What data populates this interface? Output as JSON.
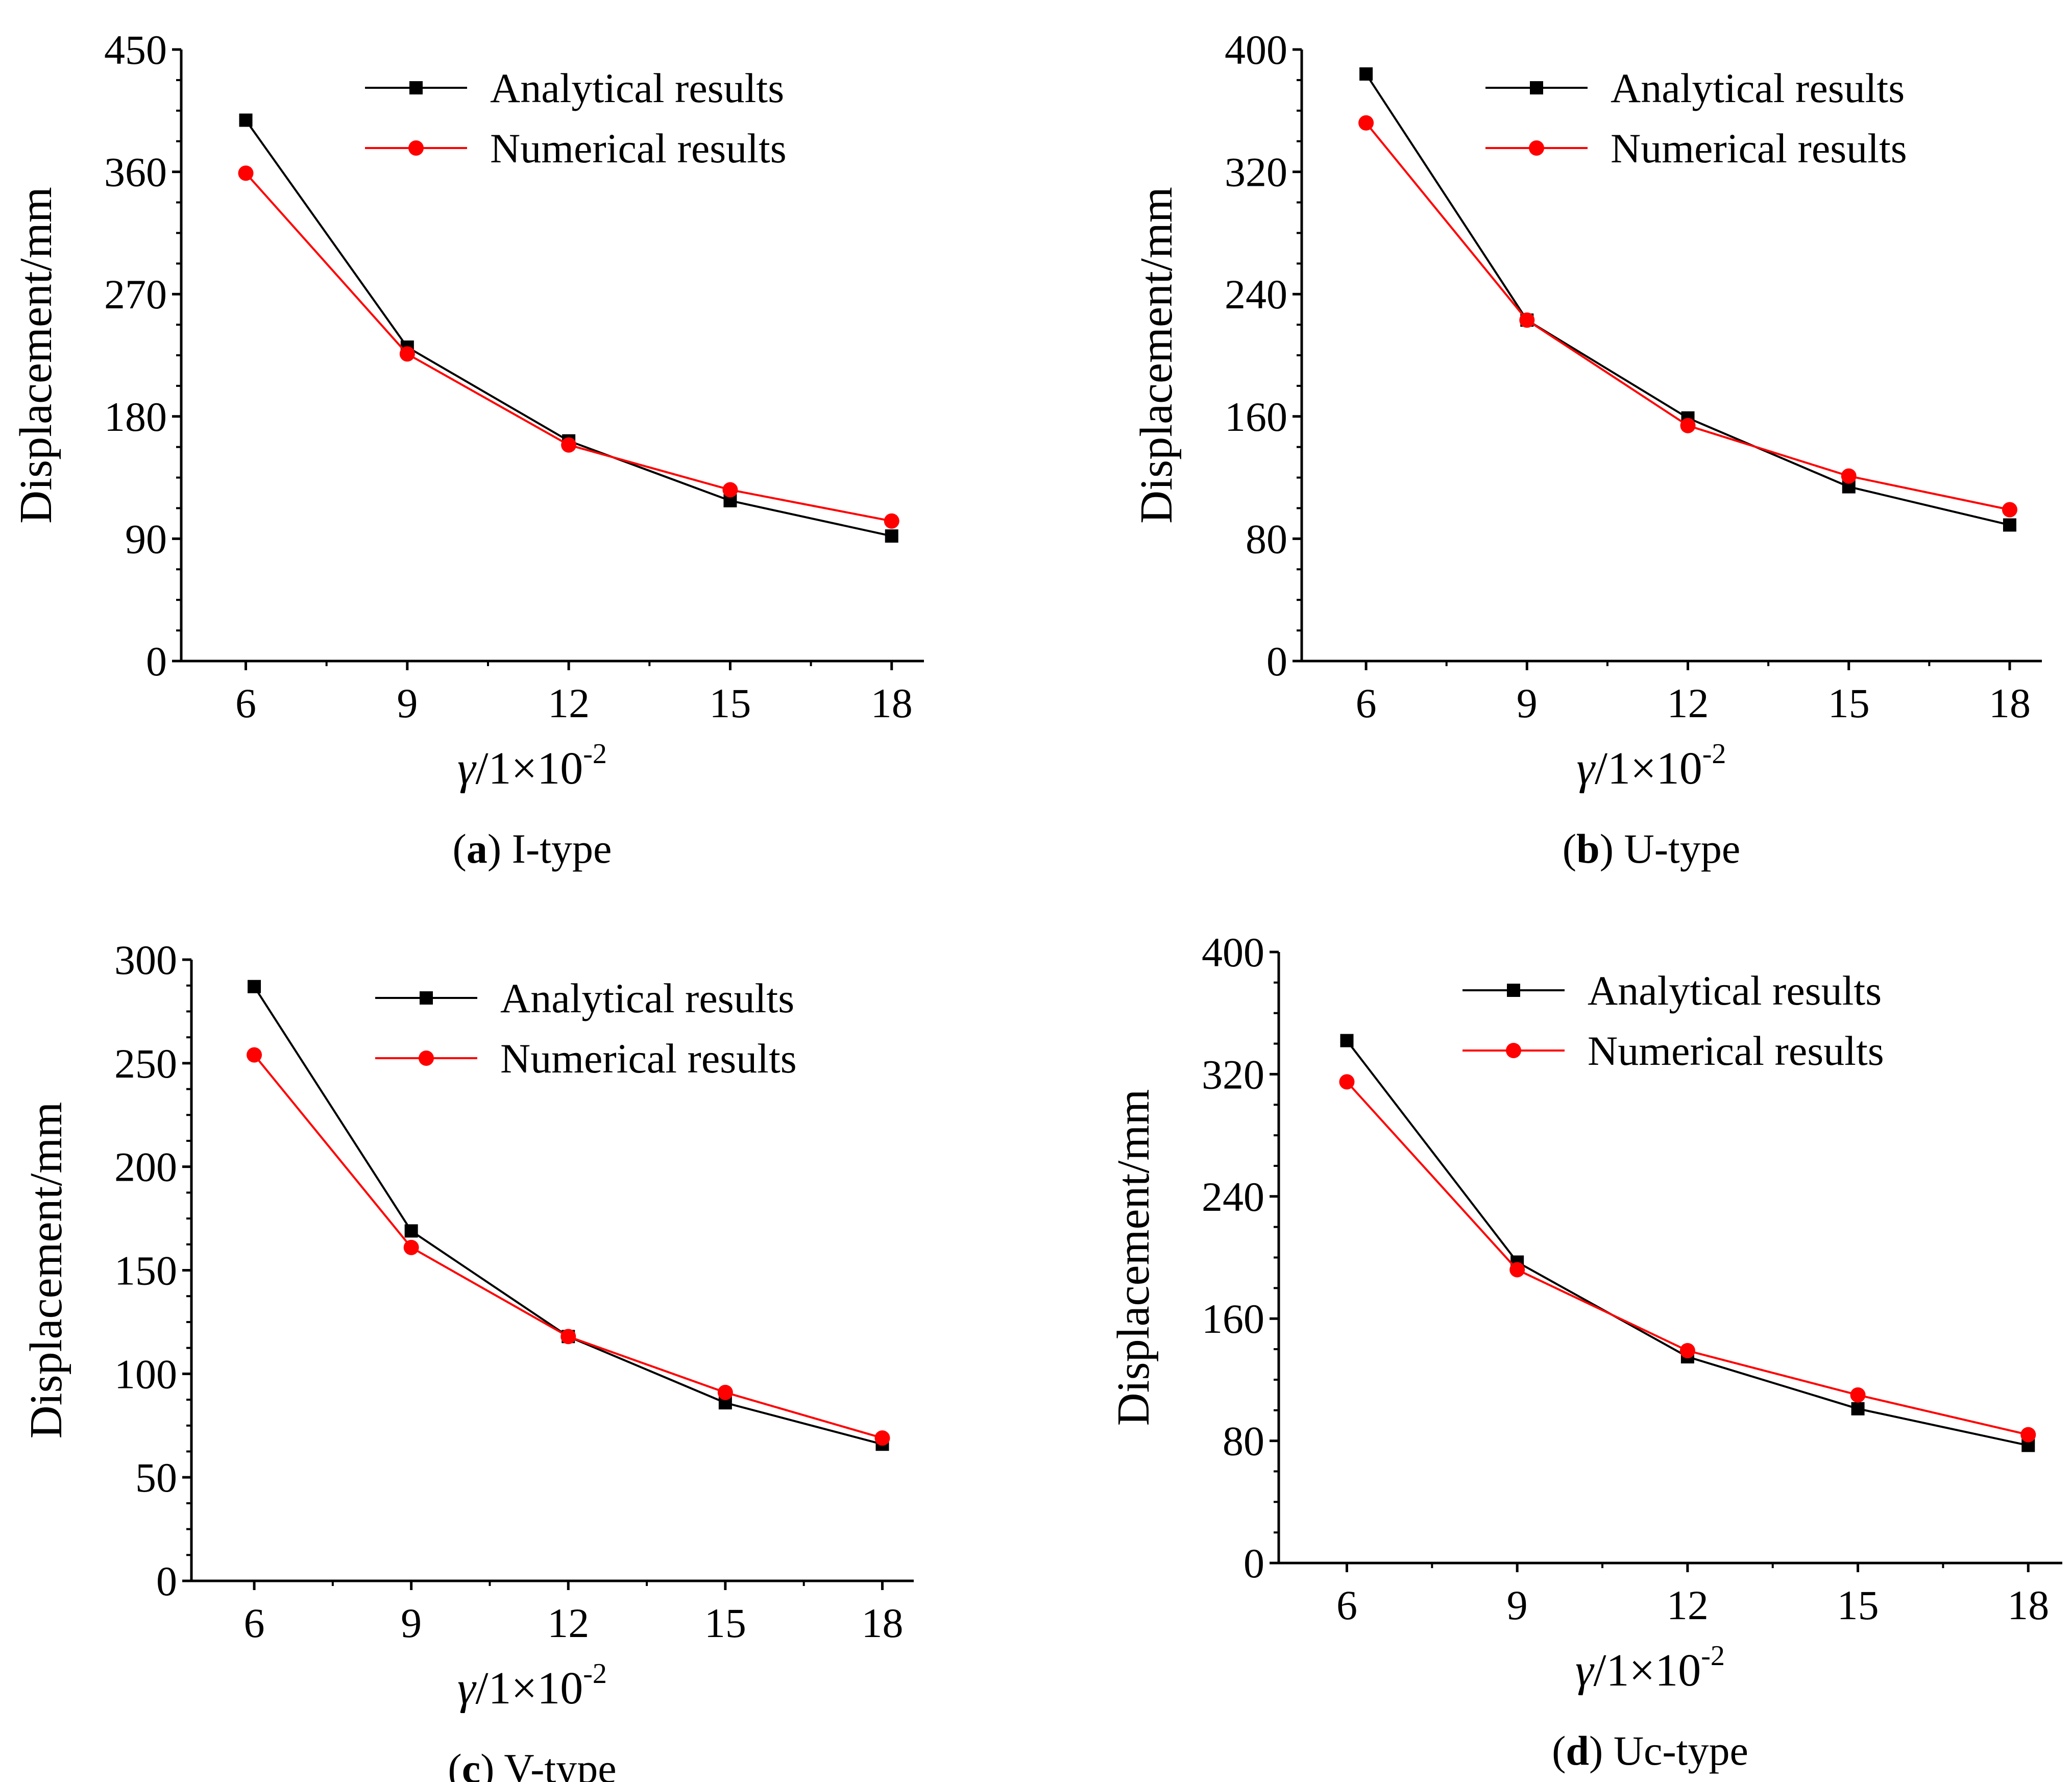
{
  "figure": {
    "legend": [
      {
        "name": "Analytical results",
        "marker": "square",
        "color": "#000000"
      },
      {
        "name": "Numerical results",
        "marker": "circle",
        "color": "#ff0000"
      }
    ]
  },
  "chart_data": [
    {
      "type": "line",
      "panel": "a",
      "caption_letter": "a",
      "caption_text": "I-type",
      "title": "",
      "ylabel": "Displacement/mm",
      "xlabel_symbol": "γ",
      "xlabel_text": "/1×10",
      "xlabel_exp": "-2",
      "x": [
        6,
        9,
        12,
        15,
        18
      ],
      "xlim": [
        4.8,
        18.6
      ],
      "ylim": [
        0,
        450
      ],
      "yticks": [
        0,
        90,
        180,
        270,
        360,
        450
      ],
      "xticks": [
        6,
        9,
        12,
        15,
        18
      ],
      "legend_position": "top-right",
      "grid": false,
      "series": [
        {
          "name": "Analytical results",
          "values": [
            398,
            231,
            162,
            118,
            92
          ]
        },
        {
          "name": "Numerical results",
          "values": [
            359,
            226,
            159,
            126,
            103
          ]
        }
      ]
    },
    {
      "type": "line",
      "panel": "b",
      "caption_letter": "b",
      "caption_text": "U-type",
      "title": "",
      "ylabel": "Displacement/mm",
      "xlabel_symbol": "γ",
      "xlabel_text": "/1×10",
      "xlabel_exp": "-2",
      "x": [
        6,
        9,
        12,
        15,
        18
      ],
      "xlim": [
        4.8,
        18.6
      ],
      "ylim": [
        0,
        400
      ],
      "yticks": [
        0,
        80,
        160,
        240,
        320,
        400
      ],
      "xticks": [
        6,
        9,
        12,
        15,
        18
      ],
      "legend_position": "top-right",
      "grid": false,
      "series": [
        {
          "name": "Analytical results",
          "values": [
            384,
            223,
            159,
            114,
            89
          ]
        },
        {
          "name": "Numerical results",
          "values": [
            352,
            223,
            154,
            121,
            99
          ]
        }
      ]
    },
    {
      "type": "line",
      "panel": "c",
      "caption_letter": "c",
      "caption_text": "V-type",
      "title": "",
      "ylabel": "Displacement/mm",
      "xlabel_symbol": "γ",
      "xlabel_text": "/1×10",
      "xlabel_exp": "-2",
      "x": [
        6,
        9,
        12,
        15,
        18
      ],
      "xlim": [
        4.8,
        18.6
      ],
      "ylim": [
        0,
        300
      ],
      "yticks": [
        0,
        50,
        100,
        150,
        200,
        250,
        300
      ],
      "xticks": [
        6,
        9,
        12,
        15,
        18
      ],
      "legend_position": "top-right",
      "grid": false,
      "series": [
        {
          "name": "Analytical results",
          "values": [
            287,
            169,
            118,
            86,
            66
          ]
        },
        {
          "name": "Numerical results",
          "values": [
            254,
            161,
            118,
            91,
            69
          ]
        }
      ]
    },
    {
      "type": "line",
      "panel": "d",
      "caption_letter": "d",
      "caption_text": "Uc-type",
      "title": "",
      "ylabel": "Displacement/mm",
      "xlabel_symbol": "γ",
      "xlabel_text": "/1×10",
      "xlabel_exp": "-2",
      "x": [
        6,
        9,
        12,
        15,
        18
      ],
      "xlim": [
        4.8,
        18.6
      ],
      "ylim": [
        0,
        400
      ],
      "yticks": [
        0,
        80,
        160,
        240,
        320,
        400
      ],
      "xticks": [
        6,
        9,
        12,
        15,
        18
      ],
      "legend_position": "top-right",
      "grid": false,
      "series": [
        {
          "name": "Analytical results",
          "values": [
            342,
            197,
            135,
            101,
            77
          ]
        },
        {
          "name": "Numerical results",
          "values": [
            315,
            192,
            139,
            110,
            84
          ]
        }
      ]
    }
  ]
}
